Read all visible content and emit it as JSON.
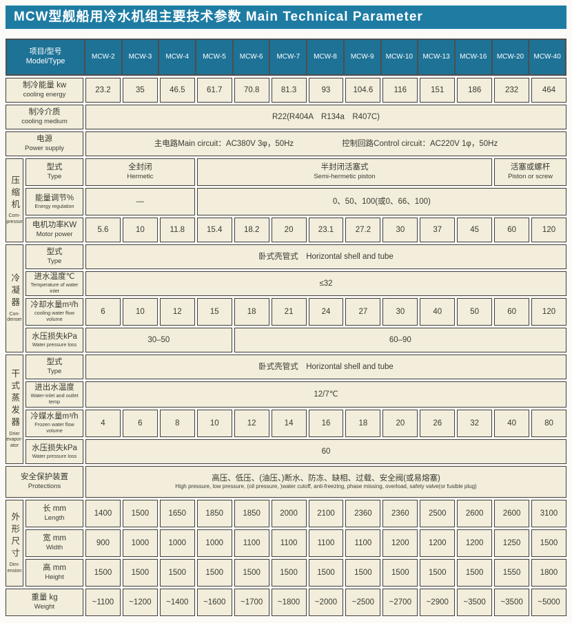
{
  "title": "MCW型舰船用冷水机组主要技术参数 Main Technical Parameter",
  "colors": {
    "title_bg": "#1e7ca3",
    "header_bg": "#1e7296",
    "header_text": "#ffffff",
    "cell_bg": "#f2eedb",
    "grid_line": "#3e3e3e"
  },
  "table": {
    "header": {
      "label_zh": "项目/型号",
      "label_en": "Model/Type",
      "models": [
        "MCW-2",
        "MCW-3",
        "MCW-4",
        "MCW-5",
        "MCW-6",
        "MCW-7",
        "MCW-8",
        "MCW-9",
        "MCW-10",
        "MCW-13",
        "MCW-16",
        "MCW-20",
        "MCW-40"
      ]
    },
    "sections": [
      {
        "zh": "压缩机",
        "en": [
          "Com-",
          "pressor"
        ],
        "start": 4,
        "span": 3
      },
      {
        "zh": "冷凝器",
        "en": [
          "Con-",
          "denser"
        ],
        "start": 7,
        "span": 4
      },
      {
        "zh": "干式蒸发器",
        "en": [
          "Drier",
          "evapor-",
          "ator"
        ],
        "start": 11,
        "span": 4
      },
      {
        "zh": "外形尺寸",
        "en": [
          "Dim-",
          "ension"
        ],
        "start": 16,
        "span": 3
      }
    ],
    "rows": [
      {
        "label_zh": "制冷能量 kw",
        "label_en": "cooling energy",
        "cells": [
          {
            "t": "23.2"
          },
          {
            "t": "35"
          },
          {
            "t": "46.5"
          },
          {
            "t": "61.7"
          },
          {
            "t": "70.8"
          },
          {
            "t": "81.3"
          },
          {
            "t": "93"
          },
          {
            "t": "104.6"
          },
          {
            "t": "116"
          },
          {
            "t": "151"
          },
          {
            "t": "186"
          },
          {
            "t": "232"
          },
          {
            "t": "464"
          }
        ]
      },
      {
        "label_zh": "制冷介质",
        "label_en": "cooling medium",
        "cells": [
          {
            "t": "R22(R404A　R134a　R407C)",
            "span": 13
          }
        ]
      },
      {
        "label_zh": "电源",
        "label_en": "Power supply",
        "cells": [
          {
            "t": "主电路Main circuit：AC380V 3φ，50Hz",
            "t2": "控制回路Control circuit：AC220V 1φ，50Hz",
            "inline": true,
            "span": 13
          }
        ]
      },
      {
        "label_zh": "型式",
        "label_en": "Type",
        "cells": [
          {
            "t": "全封闭",
            "t2": "Hermetic",
            "span": 3
          },
          {
            "t": "半封闭活塞式",
            "t2": "Semi-hermetic piston",
            "span": 8
          },
          {
            "t": "活塞或螺杆",
            "t2": "Piston or screw",
            "span": 2
          }
        ]
      },
      {
        "label_zh": "能量调节%",
        "label_en": "Energy regulation",
        "cells": [
          {
            "t": "—",
            "span": 3
          },
          {
            "t": "0、50、100(或0、66、100)",
            "span": 10
          }
        ]
      },
      {
        "label_zh": "电机功率KW",
        "label_en": "Motor power",
        "cells": [
          {
            "t": "5.6"
          },
          {
            "t": "10"
          },
          {
            "t": "11.8"
          },
          {
            "t": "15.4"
          },
          {
            "t": "18.2"
          },
          {
            "t": "20"
          },
          {
            "t": "23.1"
          },
          {
            "t": "27.2"
          },
          {
            "t": "30"
          },
          {
            "t": "37"
          },
          {
            "t": "45"
          },
          {
            "t": "60"
          },
          {
            "t": "120"
          }
        ]
      },
      {
        "label_zh": "型式",
        "label_en": "Type",
        "cells": [
          {
            "t": "卧式壳管式　Horizontal shell and tube",
            "span": 13
          }
        ]
      },
      {
        "label_zh": "进水温度℃",
        "label_en": "Temperature of water inlet",
        "cells": [
          {
            "t": "≤32",
            "span": 13
          }
        ]
      },
      {
        "label_zh": "冷却水量m³/h",
        "label_en": "cooling water flow volume",
        "cells": [
          {
            "t": "6"
          },
          {
            "t": "10"
          },
          {
            "t": "12"
          },
          {
            "t": "15"
          },
          {
            "t": "18"
          },
          {
            "t": "21"
          },
          {
            "t": "24"
          },
          {
            "t": "27"
          },
          {
            "t": "30"
          },
          {
            "t": "40"
          },
          {
            "t": "50"
          },
          {
            "t": "60"
          },
          {
            "t": "120"
          }
        ]
      },
      {
        "label_zh": "水压损失kPa",
        "label_en": "Water pressure loss",
        "cells": [
          {
            "t": "30–50",
            "span": 4
          },
          {
            "t": "60–90",
            "span": 9
          }
        ]
      },
      {
        "label_zh": "型式",
        "label_en": "Type",
        "cells": [
          {
            "t": "卧式壳管式　Horizontal shell and tube",
            "span": 13
          }
        ]
      },
      {
        "label_zh": "进出水温度",
        "label_en": "Water-inlet and outlet temp",
        "cells": [
          {
            "t": "12/7℃",
            "span": 13
          }
        ]
      },
      {
        "label_zh": "冷媒水量m³/h",
        "label_en": "Frozen water flow volume",
        "cells": [
          {
            "t": "4"
          },
          {
            "t": "6"
          },
          {
            "t": "8"
          },
          {
            "t": "10"
          },
          {
            "t": "12"
          },
          {
            "t": "14"
          },
          {
            "t": "16"
          },
          {
            "t": "18"
          },
          {
            "t": "20"
          },
          {
            "t": "26"
          },
          {
            "t": "32"
          },
          {
            "t": "40"
          },
          {
            "t": "80"
          }
        ]
      },
      {
        "label_zh": "水压损失kPa",
        "label_en": "Water pressure loss",
        "cells": [
          {
            "t": "60",
            "span": 13
          }
        ]
      },
      {
        "label_zh": "安全保护装置",
        "label_en": "Protections",
        "cells": [
          {
            "t": "高压、低压、(油压、)断水、防冻、缺相、过载、安全阀(或易熔塞)",
            "t2": "High pressure, low pressure, (oil pressure, )water cutoff, anti-freezing, phase missing, overload, safety valve(or fusible plug)",
            "span": 13
          }
        ]
      },
      {
        "label_zh": "长 mm",
        "label_en": "Length",
        "cells": [
          {
            "t": "1400"
          },
          {
            "t": "1500"
          },
          {
            "t": "1650"
          },
          {
            "t": "1850"
          },
          {
            "t": "1850"
          },
          {
            "t": "2000"
          },
          {
            "t": "2100"
          },
          {
            "t": "2360"
          },
          {
            "t": "2360"
          },
          {
            "t": "2500"
          },
          {
            "t": "2600"
          },
          {
            "t": "2600"
          },
          {
            "t": "3100"
          }
        ]
      },
      {
        "label_zh": "宽 mm",
        "label_en": "Width",
        "cells": [
          {
            "t": "900"
          },
          {
            "t": "1000"
          },
          {
            "t": "1000"
          },
          {
            "t": "1000"
          },
          {
            "t": "1100"
          },
          {
            "t": "1100"
          },
          {
            "t": "1100"
          },
          {
            "t": "1100"
          },
          {
            "t": "1200"
          },
          {
            "t": "1200"
          },
          {
            "t": "1200"
          },
          {
            "t": "1250"
          },
          {
            "t": "1500"
          }
        ]
      },
      {
        "label_zh": "高 mm",
        "label_en": "Height",
        "cells": [
          {
            "t": "1500"
          },
          {
            "t": "1500"
          },
          {
            "t": "1500"
          },
          {
            "t": "1500"
          },
          {
            "t": "1500"
          },
          {
            "t": "1500"
          },
          {
            "t": "1500"
          },
          {
            "t": "1500"
          },
          {
            "t": "1500"
          },
          {
            "t": "1500"
          },
          {
            "t": "1500"
          },
          {
            "t": "1550"
          },
          {
            "t": "1800"
          }
        ]
      },
      {
        "label_zh": "重量 kg",
        "label_en": "Weight",
        "cells": [
          {
            "t": "~1100"
          },
          {
            "t": "~1200"
          },
          {
            "t": "~1400"
          },
          {
            "t": "~1600"
          },
          {
            "t": "~1700"
          },
          {
            "t": "~1800"
          },
          {
            "t": "~2000"
          },
          {
            "t": "~2500"
          },
          {
            "t": "~2700"
          },
          {
            "t": "~2900"
          },
          {
            "t": "~3500"
          },
          {
            "t": "~3500"
          },
          {
            "t": "~5000"
          }
        ]
      }
    ]
  }
}
